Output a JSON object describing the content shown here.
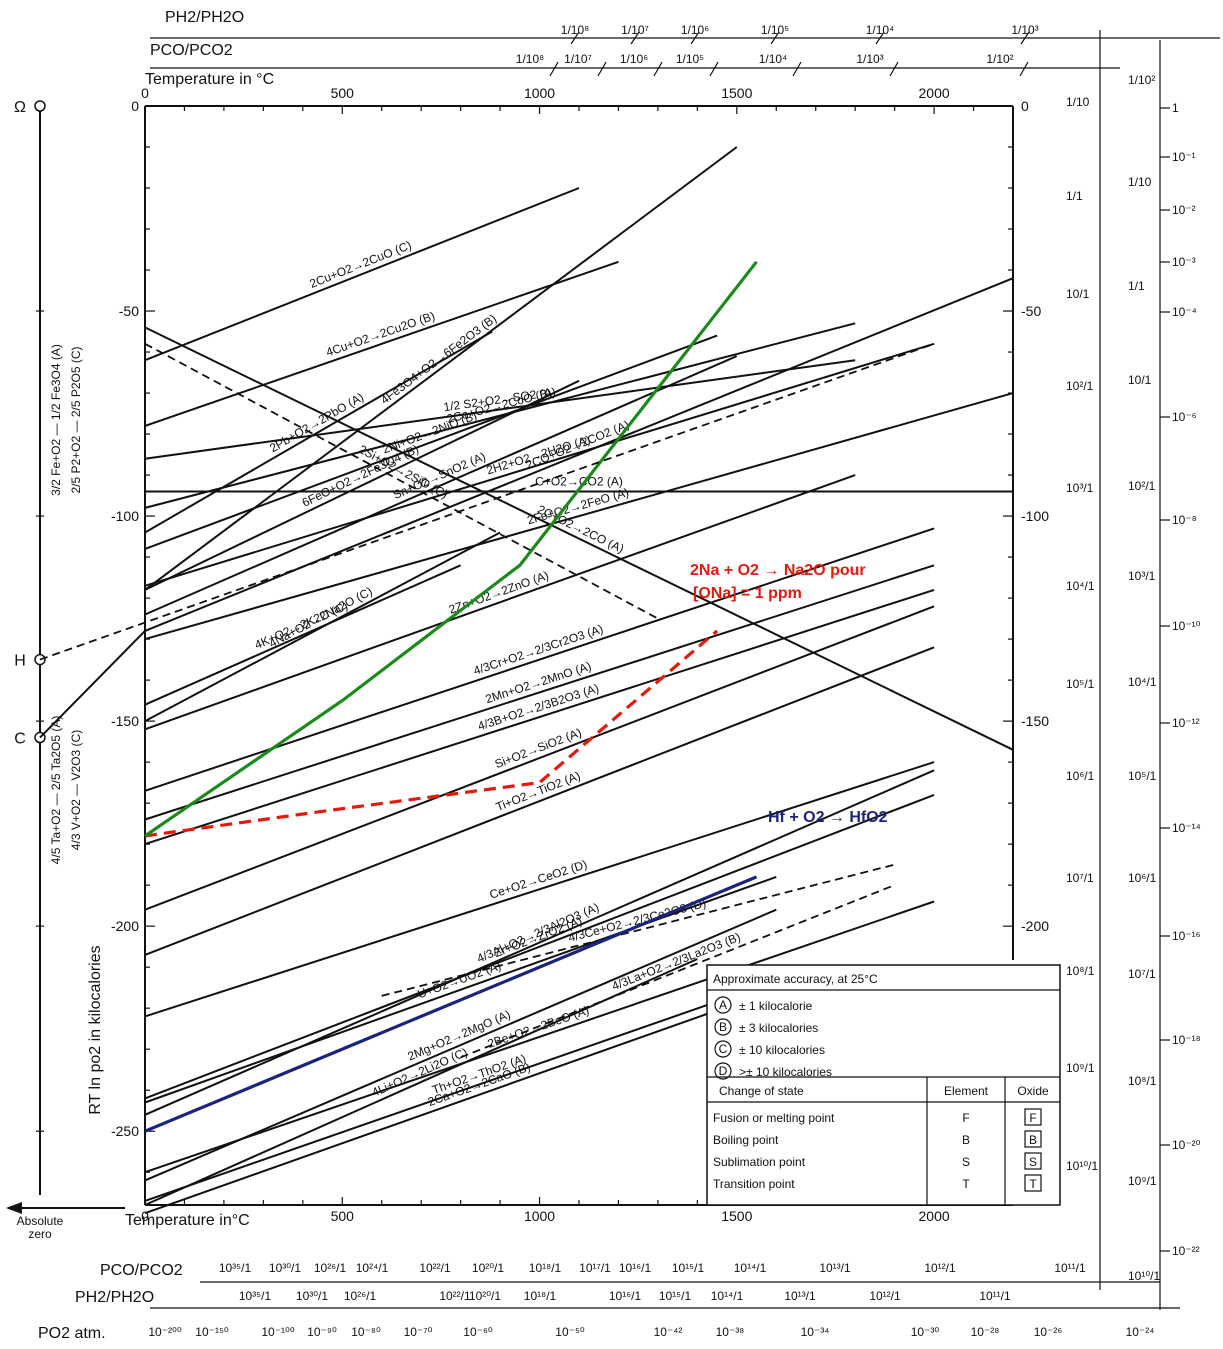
{
  "chart_data": {
    "type": "line",
    "xlabel_top": "Temperature in °C",
    "xlabel_bottom": "Temperature in°C",
    "ylabel": "RT ln po2 in kilocalories",
    "x_ticks": [
      0,
      500,
      1000,
      1500,
      2000
    ],
    "y_ticks": [
      0,
      -50,
      -100,
      -150,
      -200,
      -250
    ],
    "right_ticks": [
      0,
      -50,
      -100,
      -150,
      -200
    ],
    "xlim": [
      0,
      2200
    ],
    "ylim": [
      -268,
      0
    ],
    "left_nomograph_points": [
      "Ω",
      "H",
      "C"
    ],
    "absolute_zero_label": "Absolute zero",
    "top_scales": {
      "ph2_label": "PH2/PH2O",
      "pco_label": "PCO/PCO2",
      "ph2_ticks": [
        "1/10⁸",
        "1/10⁷",
        "1/10⁶",
        "1/10⁵",
        "1/10⁴",
        "1/10³"
      ],
      "pco_ticks": [
        "1/10⁸",
        "1/10⁷",
        "1/10⁶",
        "1/10⁵",
        "1/10⁴",
        "1/10³",
        "1/10²"
      ]
    },
    "right_scales": {
      "inner": [
        "1/10",
        "1/1",
        "10/1",
        "10²/1",
        "10³/1",
        "10⁴/1",
        "10⁵/1",
        "10⁶/1",
        "10⁷/1",
        "10⁸/1",
        "10⁹/1",
        "10¹⁰/1"
      ],
      "middle": [
        "1/10²",
        "1/10",
        "1/1",
        "10/1",
        "10²/1",
        "10³/1",
        "10⁴/1",
        "10⁵/1",
        "10⁶/1",
        "10⁷/1",
        "10⁸/1",
        "10⁹/1",
        "10¹⁰/1"
      ],
      "outer": [
        "1",
        "10⁻¹",
        "10⁻²",
        "10⁻³",
        "10⁻⁴",
        "10⁻⁶",
        "10⁻⁸",
        "10⁻¹⁰",
        "10⁻¹²",
        "10⁻¹⁴",
        "10⁻¹⁶",
        "10⁻¹⁸",
        "10⁻²⁰",
        "10⁻²²"
      ]
    },
    "bottom_scales": {
      "pco_label": "PCO/PCO2",
      "ph2_label": "PH2/PH2O",
      "po2_label": "PO2 atm.",
      "pco_ticks": [
        "10³⁵/1",
        "10³⁰/1",
        "10²⁶/1",
        "10²⁴/1",
        "10²²/1",
        "10²⁰/1",
        "10¹⁸/1",
        "10¹⁷/1",
        "10¹⁶/1",
        "10¹⁵/1",
        "10¹⁴/1",
        "10¹³/1",
        "10¹²/1",
        "10¹¹/1"
      ],
      "ph2_ticks": [
        "10³⁵/1",
        "10³⁰/1",
        "10²⁶/1",
        "10²²/1",
        "10²⁰/1",
        "10¹⁸/1",
        "10¹⁶/1",
        "10¹⁵/1",
        "10¹⁴/1",
        "10¹³/1",
        "10¹²/1",
        "10¹¹/1"
      ],
      "po2_ticks": [
        "10⁻²⁰⁰",
        "10⁻¹⁵⁰",
        "10⁻¹⁰⁰",
        "10⁻⁹⁰",
        "10⁻⁸⁰",
        "10⁻⁷⁰",
        "10⁻⁶⁰",
        "10⁻⁵⁰",
        "10⁻⁴²",
        "10⁻³⁸",
        "10⁻³⁴",
        "10⁻³⁰",
        "10⁻²⁸",
        "10⁻²⁶",
        "10⁻²⁴"
      ]
    },
    "series": [
      {
        "name": "4Fe3O4+O2→6Fe2O3 (B)",
        "style": "solid",
        "x": [
          0,
          1500
        ],
        "y": [
          -118,
          -10
        ]
      },
      {
        "name": "2Cu+O2→2CuO (C)",
        "style": "solid",
        "x": [
          0,
          1100
        ],
        "y": [
          -62,
          -20
        ]
      },
      {
        "name": "4Cu+O2→2Cu2O (B)",
        "style": "solid",
        "x": [
          0,
          1200
        ],
        "y": [
          -78,
          -38
        ]
      },
      {
        "name": "2Pb+O2→2PbO (A)",
        "style": "solid",
        "x": [
          0,
          880
        ],
        "y": [
          -104,
          -55
        ]
      },
      {
        "name": "2Ni+O2→2NiO (B)",
        "style": "solid",
        "x": [
          0,
          1450
        ],
        "y": [
          -108,
          -56
        ]
      },
      {
        "name": "2CO+O2→2CO2 (A)",
        "style": "solid",
        "x": [
          0,
          2200
        ],
        "y": [
          -128,
          -42
        ]
      },
      {
        "name": "2Si+O2→2SiO (C)",
        "style": "dashed",
        "x": [
          0,
          1300
        ],
        "y": [
          -58,
          -125
        ]
      },
      {
        "name": "1/2 S2+O2→SO2 (A)",
        "style": "solid",
        "x": [
          0,
          1800
        ],
        "y": [
          -86,
          -62
        ]
      },
      {
        "name": "2Co+O2→2CoO (B)",
        "style": "solid",
        "x": [
          0,
          1800
        ],
        "y": [
          -98,
          -53
        ]
      },
      {
        "name": "6FeO+O2→2Fe3O4 (B)",
        "style": "solid",
        "x": [
          0,
          1100
        ],
        "y": [
          -118,
          -67
        ]
      },
      {
        "name": "Sn+O2→SnO2 (A)",
        "style": "solid",
        "x": [
          0,
          1500
        ],
        "y": [
          -124,
          -61
        ]
      },
      {
        "name": "2Fe+O2→2FeO (A)",
        "style": "solid",
        "x": [
          0,
          2200
        ],
        "y": [
          -130,
          -70
        ]
      },
      {
        "name": "C+O2→CO2 (A)",
        "style": "solid",
        "x": [
          0,
          2200
        ],
        "y": [
          -94,
          -94
        ]
      },
      {
        "name": "2H2+O2→2H2O (A)",
        "style": "solid",
        "x": [
          0,
          2000
        ],
        "y": [
          -117,
          -58
        ]
      },
      {
        "name": "2C+O2→2CO (A)",
        "style": "solid",
        "x": [
          0,
          2200
        ],
        "y": [
          -54,
          -157
        ]
      },
      {
        "name": "4K+O2→2K2O (C)",
        "style": "solid",
        "x": [
          0,
          800
        ],
        "y": [
          -146,
          -112
        ]
      },
      {
        "name": "2Zn+O2→2ZnO (A)",
        "style": "solid",
        "x": [
          0,
          1800
        ],
        "y": [
          -152,
          -90
        ]
      },
      {
        "name": "4Na+O2→2Na2O (C)",
        "style": "solid",
        "x": [
          0,
          900
        ],
        "y": [
          -150,
          -104
        ]
      },
      {
        "name": "4/3Cr+O2→2/3Cr2O3 (A)",
        "style": "solid",
        "x": [
          0,
          2000
        ],
        "y": [
          -167,
          -103
        ]
      },
      {
        "name": "2Mn+O2→2MnO (A)",
        "style": "solid",
        "x": [
          0,
          2000
        ],
        "y": [
          -174,
          -112
        ]
      },
      {
        "name": "4/3B+O2→2/3B2O3 (A)",
        "style": "solid",
        "x": [
          0,
          2000
        ],
        "y": [
          -180,
          -118
        ]
      },
      {
        "name": "Si+O2→SiO2 (A)",
        "style": "solid",
        "x": [
          0,
          2000
        ],
        "y": [
          -196,
          -122
        ]
      },
      {
        "name": "Ti+O2→TiO2 (A)",
        "style": "solid",
        "x": [
          0,
          2000
        ],
        "y": [
          -207,
          -132
        ]
      },
      {
        "name": "4/3Al+O2→2/3Al2O3 (A)",
        "style": "solid",
        "x": [
          0,
          2000
        ],
        "y": [
          -246,
          -162
        ]
      },
      {
        "name": "Zr+O2→ZrO2 (A)",
        "style": "solid",
        "x": [
          0,
          2000
        ],
        "y": [
          -242,
          -168
        ]
      },
      {
        "name": "Ce+O2→CeO2 (D)",
        "style": "solid",
        "x": [
          0,
          2000
        ],
        "y": [
          -222,
          -160
        ]
      },
      {
        "name": "4/3Ce+O2→2/3Ce2O3 (D)",
        "style": "dashed",
        "x": [
          600,
          1900
        ],
        "y": [
          -217,
          -185
        ]
      },
      {
        "name": "4/3La+O2→2/3La2O3 (B)",
        "style": "dashed",
        "x": [
          800,
          1900
        ],
        "y": [
          -232,
          -190
        ]
      },
      {
        "name": "U+O2→UO2 (A)",
        "style": "solid",
        "x": [
          0,
          1600
        ],
        "y": [
          -243,
          -188
        ]
      },
      {
        "name": "2Mg+O2→2MgO (A)",
        "style": "solid",
        "x": [
          0,
          1600
        ],
        "y": [
          -262,
          -196
        ]
      },
      {
        "name": "4Li+O2→2Li2O (C)",
        "style": "solid",
        "x": [
          0,
          1400
        ],
        "y": [
          -268,
          -208
        ]
      },
      {
        "name": "2Be+O2→2BeO (A)",
        "style": "solid",
        "x": [
          0,
          2000
        ],
        "y": [
          -260,
          -194
        ]
      },
      {
        "name": "Th+O2→ThO2 (A)",
        "style": "solid",
        "x": [
          0,
          1700
        ],
        "y": [
          -267,
          -210
        ]
      },
      {
        "name": "2Ca+O2→2CaO (B)",
        "style": "solid",
        "x": [
          0,
          1700
        ],
        "y": [
          -270,
          -212
        ]
      },
      {
        "name": "2Na + O2 → Na2O pour [ONa] = 1 ppm",
        "style": "dashed",
        "color": "#e8180c",
        "x": [
          0,
          450,
          1000,
          1450
        ],
        "y": [
          -178,
          -172,
          -165,
          -128
        ]
      },
      {
        "name": "4Na+O2→2Na2O (green)",
        "style": "solid",
        "color": "#1a8a1a",
        "x": [
          0,
          500,
          950,
          1550
        ],
        "y": [
          -178,
          -145,
          -112,
          -38
        ]
      },
      {
        "name": "Hf + O2 → HfO2",
        "style": "solid",
        "color": "#1a237e",
        "x": [
          0,
          1550
        ],
        "y": [
          -250,
          -188
        ]
      }
    ],
    "annotations": {
      "red_line_1": "2Na + O2 → Na2O pour",
      "red_line_2": "[ONa] = 1 ppm",
      "blue": "Hf + O2 → HfO2",
      "left_top_1": "3/2 Fe+O2 — 1/2 Fe3O4 (A)",
      "left_top_2": "2/5 P2+O2 — 2/5 P2O5 (C)",
      "left_bot_1": "4/5 Ta+O2 — 2/5 Ta2O5 (A)",
      "left_bot_2": "4/3 V+O2 — V2O3 (C)"
    },
    "legend": {
      "title": "Approximate accuracy, at 25°C",
      "rows": [
        {
          "sym": "A",
          "text": "± 1  kilocalorie"
        },
        {
          "sym": "B",
          "text": "± 3  kilocalories"
        },
        {
          "sym": "C",
          "text": "± 10  kilocalories"
        },
        {
          "sym": "D",
          "text": ">± 10  kilocalories"
        }
      ],
      "state_header": [
        "Change of state",
        "Element",
        "Oxide"
      ],
      "states": [
        {
          "text": "Fusion or melting point",
          "el": "F",
          "ox": "F"
        },
        {
          "text": "Boiling  point",
          "el": "B",
          "ox": "B"
        },
        {
          "text": "Sublimation point",
          "el": "S",
          "ox": "S"
        },
        {
          "text": "Transition point",
          "el": "T",
          "ox": "T"
        }
      ]
    }
  }
}
